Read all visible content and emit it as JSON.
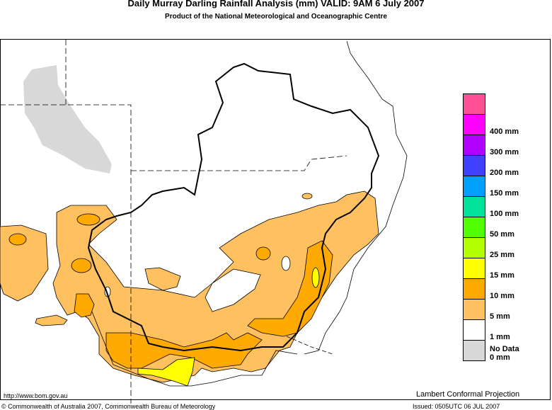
{
  "header": {
    "title": "Daily Murray Darling Rainfall Analysis (mm)  VALID: 9AM  6 July 2007",
    "subtitle": "Product of the National Meteorological and Oceanographic Centre"
  },
  "legend": {
    "items": [
      {
        "color": "#ff5096",
        "label": ""
      },
      {
        "color": "#ff00ff",
        "label": "400 mm"
      },
      {
        "color": "#b000ff",
        "label": "300 mm"
      },
      {
        "color": "#4040ff",
        "label": "200 mm"
      },
      {
        "color": "#00a0ff",
        "label": "150 mm"
      },
      {
        "color": "#00e29a",
        "label": "100 mm"
      },
      {
        "color": "#50ff00",
        "label": "50 mm"
      },
      {
        "color": "#b4ff00",
        "label": "25 mm"
      },
      {
        "color": "#ffff00",
        "label": "15 mm"
      },
      {
        "color": "#ffaa00",
        "label": "10 mm"
      },
      {
        "color": "#ffc060",
        "label": "5 mm"
      },
      {
        "color": "#ffffff",
        "label": "1 mm"
      },
      {
        "color": "#d8d8d8",
        "label": "0 mm"
      }
    ],
    "no_data_label": "No Data"
  },
  "map": {
    "colors": {
      "light": "#ffc060",
      "medium": "#ffaa00",
      "heavy": "#ffff00",
      "nodata": "#d8d8d8"
    }
  },
  "footer": {
    "url": "http://www.bom.gov.au",
    "projection": "Lambert Conformal Projection",
    "copyright": "© Commonwealth of Australia 2007, Commonwealth Bureau of Meteorology",
    "issued": "Issued: 0505UTC 06 JUL 2007"
  }
}
